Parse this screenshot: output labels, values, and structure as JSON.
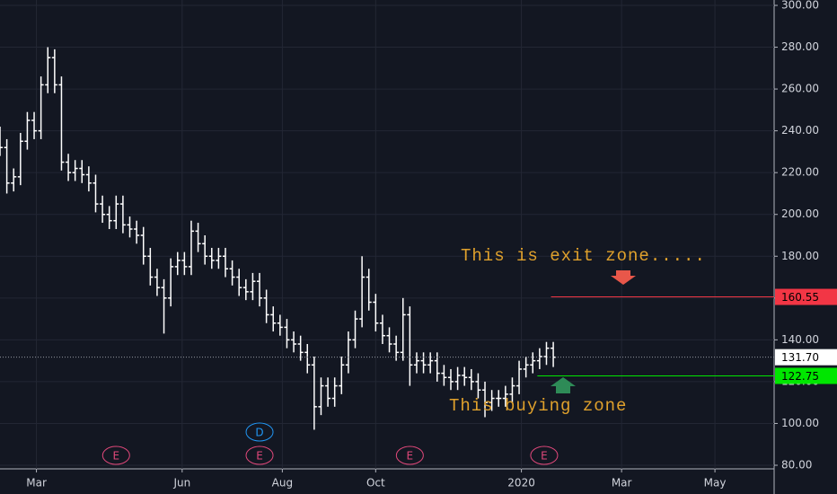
{
  "chart_data": {
    "type": "ohlc",
    "color": "#ffffff",
    "grid": true,
    "x": [
      0,
      3,
      6,
      9,
      12,
      15,
      18,
      21,
      24,
      27,
      30,
      33,
      36,
      39,
      42,
      45,
      48,
      51,
      54,
      57,
      60,
      63,
      66,
      69,
      72,
      75,
      78,
      81,
      84,
      87,
      90,
      93,
      96,
      99,
      102,
      105,
      108,
      111,
      114,
      117,
      120,
      123,
      126,
      129,
      132,
      135,
      138,
      141,
      144,
      147,
      150,
      153,
      156,
      159,
      162,
      165,
      168,
      171,
      174,
      177,
      180,
      183,
      186,
      189,
      192,
      195,
      198,
      201,
      204,
      207,
      210,
      213,
      216,
      219,
      222,
      225,
      228,
      231,
      234,
      237,
      240,
      243
    ],
    "open": [
      238,
      232,
      215,
      218,
      235,
      245,
      240,
      262,
      275,
      262,
      225,
      220,
      222,
      219,
      215,
      205,
      200,
      197,
      205,
      195,
      193,
      190,
      180,
      170,
      165,
      160,
      175,
      178,
      175,
      192,
      186,
      180,
      178,
      180,
      174,
      170,
      165,
      163,
      168,
      160,
      152,
      148,
      146,
      140,
      138,
      134,
      128,
      108,
      118,
      112,
      118,
      128,
      140,
      150,
      170,
      158,
      148,
      142,
      138,
      134,
      152,
      128,
      130,
      128,
      130,
      124,
      122,
      120,
      123,
      122,
      120,
      116,
      110,
      112,
      112,
      114,
      118,
      126,
      128,
      130,
      132,
      136
    ],
    "high": [
      242,
      236,
      222,
      239,
      249,
      249,
      266,
      280,
      279,
      266,
      229,
      226,
      226,
      223,
      219,
      209,
      204,
      209,
      209,
      199,
      197,
      194,
      184,
      174,
      169,
      179,
      182,
      182,
      197,
      196,
      190,
      184,
      184,
      184,
      178,
      174,
      169,
      172,
      172,
      164,
      156,
      152,
      150,
      144,
      142,
      138,
      132,
      122,
      122,
      122,
      132,
      144,
      154,
      180,
      174,
      162,
      152,
      146,
      142,
      160,
      156,
      134,
      134,
      134,
      134,
      128,
      126,
      127,
      127,
      126,
      124,
      120,
      116,
      116,
      118,
      122,
      130,
      132,
      134,
      136,
      139,
      139
    ],
    "low": [
      228,
      210,
      211,
      214,
      231,
      236,
      236,
      258,
      258,
      221,
      216,
      216,
      215,
      211,
      201,
      196,
      193,
      193,
      191,
      189,
      186,
      176,
      166,
      161,
      143,
      156,
      171,
      171,
      171,
      182,
      176,
      174,
      174,
      170,
      166,
      161,
      159,
      159,
      156,
      148,
      144,
      142,
      136,
      134,
      130,
      124,
      97,
      104,
      108,
      108,
      114,
      124,
      136,
      146,
      154,
      144,
      138,
      134,
      130,
      130,
      118,
      124,
      124,
      124,
      120,
      118,
      116,
      116,
      118,
      116,
      112,
      103,
      106,
      108,
      108,
      110,
      114,
      122,
      124,
      126,
      128,
      127
    ],
    "close": [
      232,
      215,
      218,
      235,
      245,
      240,
      262,
      275,
      262,
      225,
      220,
      222,
      219,
      215,
      205,
      200,
      197,
      205,
      195,
      193,
      190,
      180,
      170,
      165,
      160,
      175,
      178,
      175,
      192,
      186,
      180,
      178,
      180,
      174,
      170,
      165,
      163,
      168,
      160,
      152,
      148,
      146,
      140,
      138,
      134,
      128,
      108,
      118,
      112,
      118,
      128,
      140,
      150,
      170,
      158,
      148,
      142,
      138,
      134,
      152,
      128,
      130,
      128,
      130,
      124,
      122,
      120,
      123,
      122,
      120,
      116,
      110,
      112,
      112,
      114,
      118,
      126,
      128,
      130,
      132,
      136,
      131.7
    ],
    "xlim": [
      0,
      340
    ],
    "xticks": [
      {
        "value": 16,
        "label": "Mar"
      },
      {
        "value": 80,
        "label": "Jun"
      },
      {
        "value": 124,
        "label": "Aug"
      },
      {
        "value": 165,
        "label": "Oct"
      },
      {
        "value": 229,
        "label": "2020"
      },
      {
        "value": 273,
        "label": "Mar"
      },
      {
        "value": 314,
        "label": "May"
      }
    ],
    "ylim": [
      80,
      300
    ],
    "yticks": [
      {
        "value": 80,
        "label": "80.00"
      },
      {
        "value": 100,
        "label": "100.00"
      },
      {
        "value": 120,
        "label": "120.00"
      },
      {
        "value": 140,
        "label": "140.00"
      },
      {
        "value": 160,
        "label": "160.00"
      },
      {
        "value": 180,
        "label": "180.00"
      },
      {
        "value": 200,
        "label": "200.00"
      },
      {
        "value": 220,
        "label": "220.00"
      },
      {
        "value": 240,
        "label": "240.00"
      },
      {
        "value": 260,
        "label": "260.00"
      },
      {
        "value": 280,
        "label": "280.00"
      },
      {
        "value": 300,
        "label": "300.00"
      }
    ],
    "levels": [
      {
        "value": 160.55,
        "label": "160.55",
        "color": "#f23645",
        "start": 242
      },
      {
        "value": 131.7,
        "label": "131.70",
        "color": "#ffffff",
        "style": "dotted",
        "start": 0
      },
      {
        "value": 122.75,
        "label": "122.75",
        "color": "#00e600",
        "start": 236
      }
    ],
    "events": [
      {
        "label": "E",
        "x": 51,
        "color": "#e0487a"
      },
      {
        "label": "E",
        "x": 114,
        "color": "#e0487a"
      },
      {
        "label": "D",
        "x": 114,
        "color": "#2196f3",
        "row": 2
      },
      {
        "label": "E",
        "x": 180,
        "color": "#e0487a"
      },
      {
        "label": "E",
        "x": 239,
        "color": "#e0487a"
      }
    ],
    "annotations": [
      "This is exit zone.....",
      "This buying zone"
    ]
  }
}
